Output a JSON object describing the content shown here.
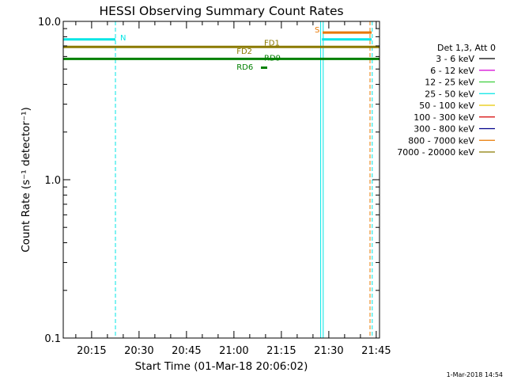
{
  "chart_data": {
    "type": "line",
    "title": "HESSI Observing Summary Count Rates",
    "xlabel": "Start Time (01-Mar-18 20:06:02)",
    "ylabel": "Count Rate (s⁻¹ detector⁻¹)",
    "y_scale": "log",
    "ylim": [
      0.1,
      10.0
    ],
    "y_ticks": [
      {
        "value": 0.1,
        "label": "0.1"
      },
      {
        "value": 1.0,
        "label": "1.0"
      },
      {
        "value": 10.0,
        "label": "10.0"
      }
    ],
    "xlim_minutes": [
      0,
      100
    ],
    "x_ticks": [
      {
        "minute": 8.97,
        "label": "20:15"
      },
      {
        "minute": 23.97,
        "label": "20:30"
      },
      {
        "minute": 38.97,
        "label": "20:45"
      },
      {
        "minute": 53.97,
        "label": "21:00"
      },
      {
        "minute": 68.97,
        "label": "21:15"
      },
      {
        "minute": 83.97,
        "label": "21:30"
      },
      {
        "minute": 98.97,
        "label": "21:45"
      }
    ],
    "legend": {
      "placement": "right",
      "header": "Det 1,3, Att 0",
      "entries": [
        {
          "label": "3 - 6 keV",
          "color": "#000000"
        },
        {
          "label": "6 - 12 keV",
          "color": "#d400d4"
        },
        {
          "label": "12 - 25 keV",
          "color": "#3ccf3c"
        },
        {
          "label": "25 - 50 keV",
          "color": "#00e5e5"
        },
        {
          "label": "50 - 100 keV",
          "color": "#e8c800"
        },
        {
          "label": "100 - 300 keV",
          "color": "#d40000"
        },
        {
          "label": "300 - 800 keV",
          "color": "#00008b"
        },
        {
          "label": "800 - 7000 keV",
          "color": "#e87800"
        },
        {
          "label": "7000 - 20000 keV",
          "color": "#8b7a00"
        }
      ]
    },
    "series": [
      {
        "name": "25 - 50 keV",
        "color": "#00e5e5",
        "segments": [
          {
            "x": [
              0,
              16.5
            ],
            "y": 7.7
          },
          {
            "x": [
              81.8,
              97.5
            ],
            "y": 7.7
          }
        ]
      },
      {
        "name": "7000 - 20000 keV",
        "color": "#8b7a00",
        "segments": [
          {
            "x": [
              0,
              100
            ],
            "y": 6.9
          }
        ]
      },
      {
        "name": "flag",
        "color": "#008000",
        "segments": [
          {
            "x": [
              0,
              100
            ],
            "y": 5.8
          },
          {
            "x": [
              62.5,
              64.5
            ],
            "y": 5.1
          }
        ]
      },
      {
        "name": "800 - 7000 keV",
        "color": "#e87800",
        "segments": [
          {
            "x": [
              82.0,
              97.5
            ],
            "y": 8.5
          }
        ]
      }
    ],
    "vlines": [
      {
        "minute": 16.5,
        "color": "#00e5e5",
        "style": "dashed"
      },
      {
        "minute": 81.4,
        "color": "#00e5e5",
        "style": "solid"
      },
      {
        "minute": 82.2,
        "color": "#00e5e5",
        "style": "solid"
      },
      {
        "minute": 97.7,
        "color": "#00e5e5",
        "style": "dashed"
      },
      {
        "minute": 97.0,
        "color": "#e87800",
        "style": "dashed"
      }
    ],
    "annotations": [
      {
        "text": "N",
        "x": 18.0,
        "y": 7.6,
        "color": "#00e5e5"
      },
      {
        "text": "S",
        "x": 79.5,
        "y": 8.5,
        "color": "#e87800"
      },
      {
        "text": "FD1",
        "x": 63.5,
        "y": 7.05,
        "color": "#8b7a00"
      },
      {
        "text": "FD2",
        "x": 54.8,
        "y": 6.25,
        "color": "#8b7a00"
      },
      {
        "text": "RD9",
        "x": 63.5,
        "y": 5.65,
        "color": "#008000"
      },
      {
        "text": "RD6",
        "x": 54.8,
        "y": 4.95,
        "color": "#008000"
      }
    ],
    "timestamp": "1-Mar-2018 14:54"
  }
}
